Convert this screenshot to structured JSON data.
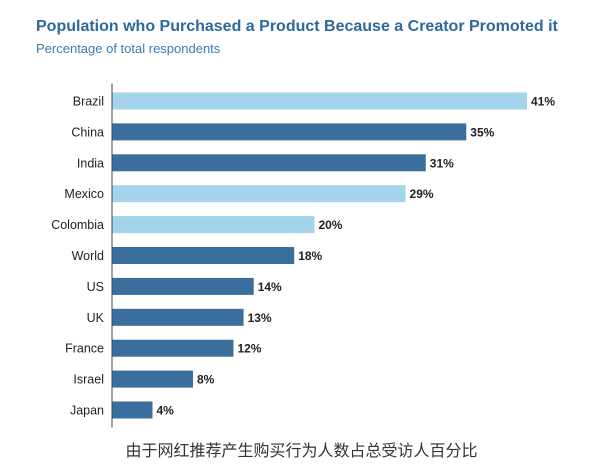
{
  "colors": {
    "title": "#2d6a9b",
    "subtitle": "#3b7bb0",
    "bar_dark": "#3a6e9c",
    "bar_light": "#a4d3ec",
    "axis": "#444444",
    "label_text": "#222222"
  },
  "chart_data": {
    "type": "bar",
    "orientation": "horizontal",
    "title": "Population who Purchased a Product Because a Creator Promoted it",
    "subtitle": "Percentage of total respondents",
    "categories": [
      "Brazil",
      "China",
      "India",
      "Mexico",
      "Colombia",
      "World",
      "US",
      "UK",
      "France",
      "Israel",
      "Japan"
    ],
    "values": [
      41,
      35,
      31,
      29,
      20,
      18,
      14,
      13,
      12,
      8,
      4
    ],
    "value_labels": [
      "41%",
      "35%",
      "31%",
      "29%",
      "20%",
      "18%",
      "14%",
      "13%",
      "12%",
      "8%",
      "4%"
    ],
    "highlight": [
      true,
      false,
      false,
      true,
      true,
      false,
      false,
      false,
      false,
      false,
      false
    ],
    "xlim": [
      0,
      41
    ],
    "unit": "%",
    "xlabel": "",
    "ylabel": "",
    "grid": false
  },
  "caption": "由于网红推荐产生购买行为人数占总受访人百分比"
}
